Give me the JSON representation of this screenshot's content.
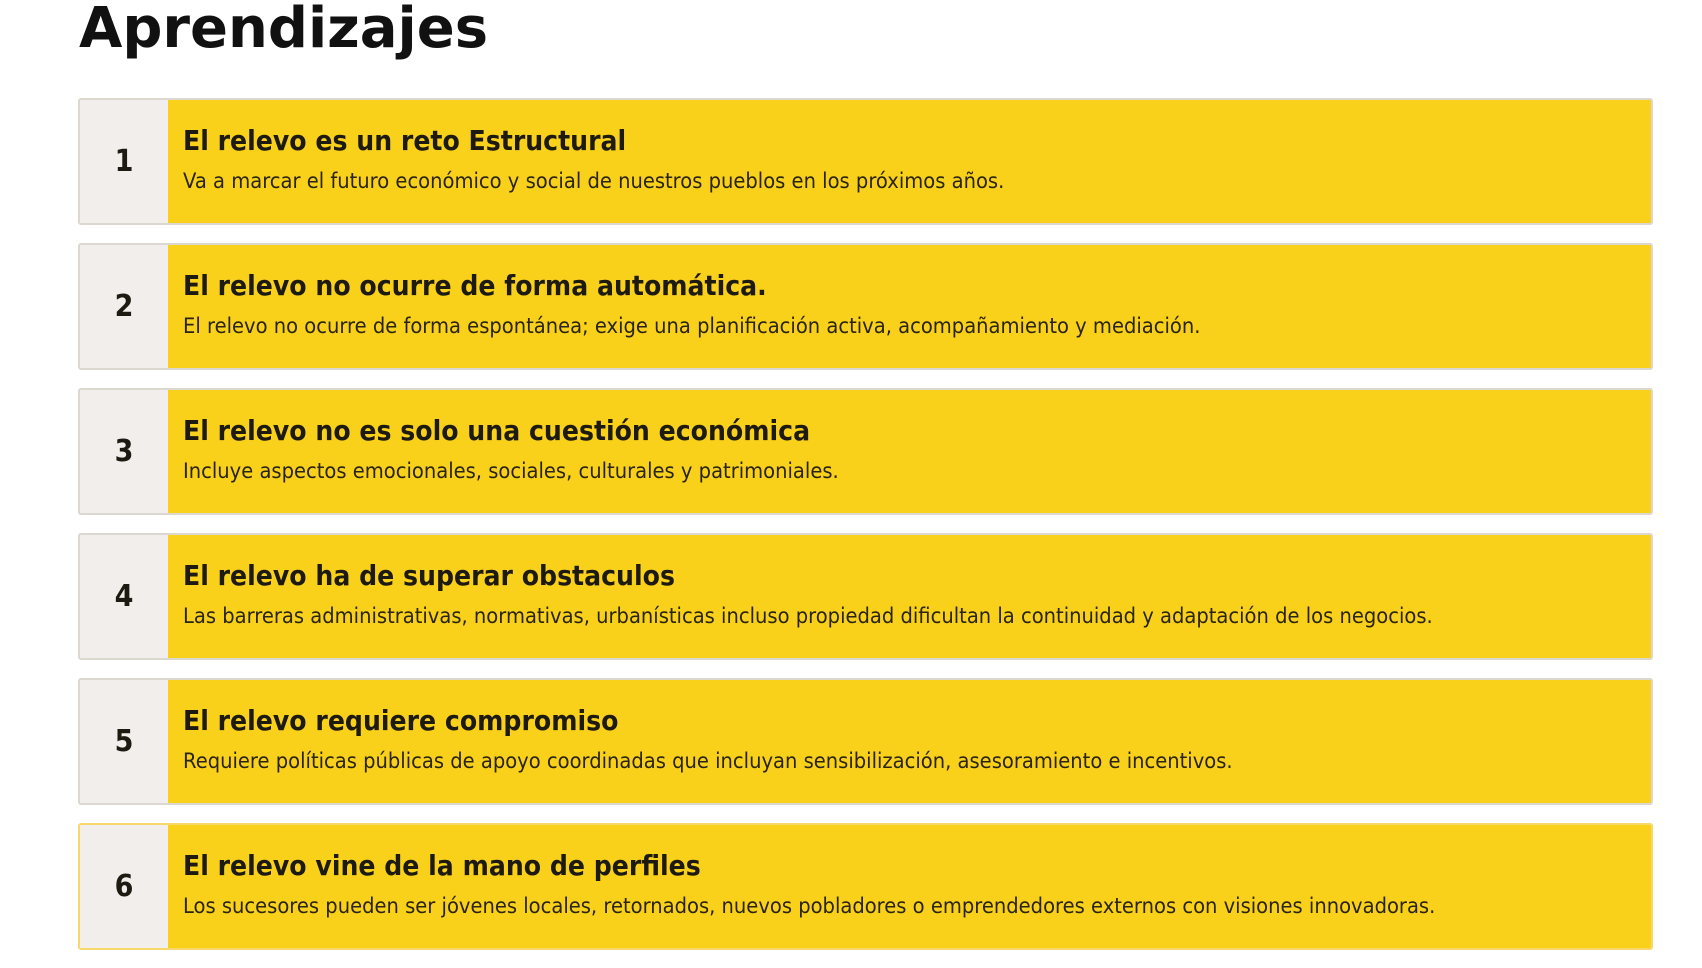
{
  "page_title": "Aprendizajes",
  "colors": {
    "card_bg": "#fad11a",
    "number_bg": "#f1eeec"
  },
  "items": [
    {
      "number": "1",
      "title": "El relevo es un reto Estructural",
      "description": "Va a marcar el futuro económico y social de nuestros pueblos en los próximos años."
    },
    {
      "number": "2",
      "title": "El relevo no ocurre de forma automática.",
      "description": "El relevo no ocurre de forma espontánea; exige una planificación activa, acompañamiento y mediación."
    },
    {
      "number": "3",
      "title": "El relevo no es solo una cuestión económica",
      "description": "Incluye aspectos emocionales, sociales, culturales y patrimoniales."
    },
    {
      "number": "4",
      "title": "El relevo ha de superar obstaculos",
      "description": "Las barreras administrativas, normativas, urbanísticas incluso propiedad dificultan la continuidad y adaptación de los negocios."
    },
    {
      "number": "5",
      "title": "El relevo requiere compromiso",
      "description": "Requiere políticas públicas de apoyo coordinadas que incluyan sensibilización, asesoramiento e incentivos."
    },
    {
      "number": "6",
      "title": "El relevo vine de la mano de perfiles",
      "description": "Los sucesores pueden ser jóvenes locales, retornados, nuevos pobladores o emprendedores externos con visiones innovadoras."
    }
  ]
}
